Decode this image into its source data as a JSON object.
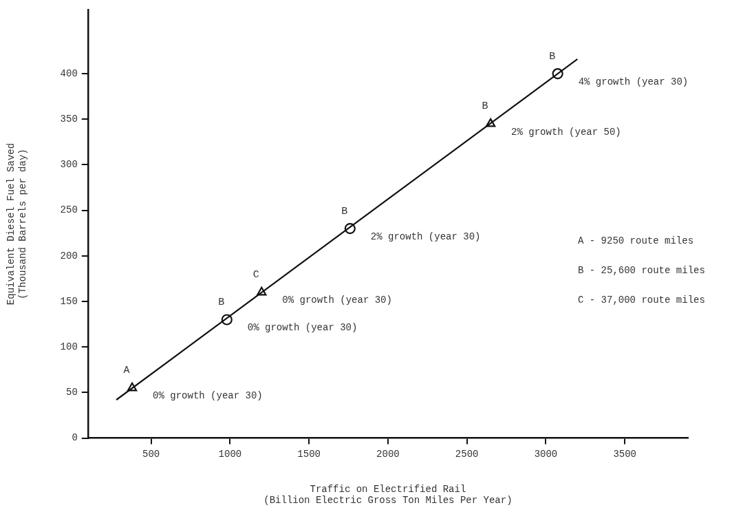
{
  "chart_data": {
    "type": "scatter",
    "xlabel": "Traffic on Electrified Rail\n(Billion Electric Gross Ton Miles Per Year)",
    "ylabel": "Equivalent Diesel Fuel Saved\n(Thousand Barrels per day)",
    "xlim": [
      100,
      3900
    ],
    "xticks": [
      500,
      1000,
      1500,
      2000,
      2500,
      3000,
      3500
    ],
    "ylim": [
      0,
      470
    ],
    "yticks": [
      0,
      50,
      100,
      150,
      200,
      250,
      300,
      350,
      400
    ],
    "grid": false,
    "legend": false,
    "series": [
      {
        "type": "line",
        "color": "#111111",
        "marker": "none",
        "line_style": "solid",
        "x": [
          280,
          3200
        ],
        "values": [
          42,
          416
        ]
      },
      {
        "type": "scatter",
        "color": "#111111",
        "marker": "triangle",
        "x": [
          380,
          1200,
          2650
        ],
        "values": [
          55,
          160,
          345
        ],
        "value_labels": [
          "A",
          "C",
          "B"
        ]
      },
      {
        "type": "scatter",
        "color": "#111111",
        "marker": "circle",
        "x": [
          980,
          1760,
          3075
        ],
        "values": [
          130,
          230,
          400
        ],
        "value_labels": [
          "B",
          "B",
          "B"
        ]
      }
    ],
    "annotations": [
      {
        "text": "0% growth (year 30)",
        "x": 380,
        "y": 55
      },
      {
        "text": "0% growth (year 30)",
        "x": 980,
        "y": 130
      },
      {
        "text": "0% growth (year 30)",
        "x": 1200,
        "y": 160
      },
      {
        "text": "2% growth (year 30)",
        "x": 1760,
        "y": 230
      },
      {
        "text": "2% growth (year 50)",
        "x": 2650,
        "y": 345
      },
      {
        "text": "4% growth (year 30)",
        "x": 3075,
        "y": 400
      },
      "A - 9250 route miles",
      "B - 25,600 route miles",
      "C - 37,000 route miles"
    ]
  }
}
